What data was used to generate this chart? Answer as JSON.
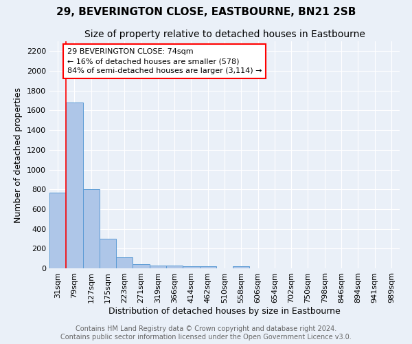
{
  "title": "29, BEVERINGTON CLOSE, EASTBOURNE, BN21 2SB",
  "subtitle": "Size of property relative to detached houses in Eastbourne",
  "xlabel": "Distribution of detached houses by size in Eastbourne",
  "ylabel": "Number of detached properties",
  "footer_line1": "Contains HM Land Registry data © Crown copyright and database right 2024.",
  "footer_line2": "Contains public sector information licensed under the Open Government Licence v3.0.",
  "categories": [
    "31sqm",
    "79sqm",
    "127sqm",
    "175sqm",
    "223sqm",
    "271sqm",
    "319sqm",
    "366sqm",
    "414sqm",
    "462sqm",
    "510sqm",
    "558sqm",
    "606sqm",
    "654sqm",
    "702sqm",
    "750sqm",
    "798sqm",
    "846sqm",
    "894sqm",
    "941sqm",
    "989sqm"
  ],
  "values": [
    770,
    1680,
    800,
    300,
    110,
    40,
    30,
    25,
    20,
    20,
    0,
    20,
    0,
    0,
    0,
    0,
    0,
    0,
    0,
    0,
    0
  ],
  "bar_color": "#aec6e8",
  "bar_edge_color": "#5b9bd5",
  "highlight_color": "red",
  "annotation_text_line1": "29 BEVERINGTON CLOSE: 74sqm",
  "annotation_text_line2": "← 16% of detached houses are smaller (578)",
  "annotation_text_line3": "84% of semi-detached houses are larger (3,114) →",
  "ylim": [
    0,
    2300
  ],
  "yticks": [
    0,
    200,
    400,
    600,
    800,
    1000,
    1200,
    1400,
    1600,
    1800,
    2000,
    2200
  ],
  "background_color": "#eaf0f8",
  "grid_color": "#ffffff",
  "title_fontsize": 11,
  "subtitle_fontsize": 10,
  "axis_label_fontsize": 9,
  "tick_fontsize": 8,
  "annotation_fontsize": 8,
  "footer_fontsize": 7
}
